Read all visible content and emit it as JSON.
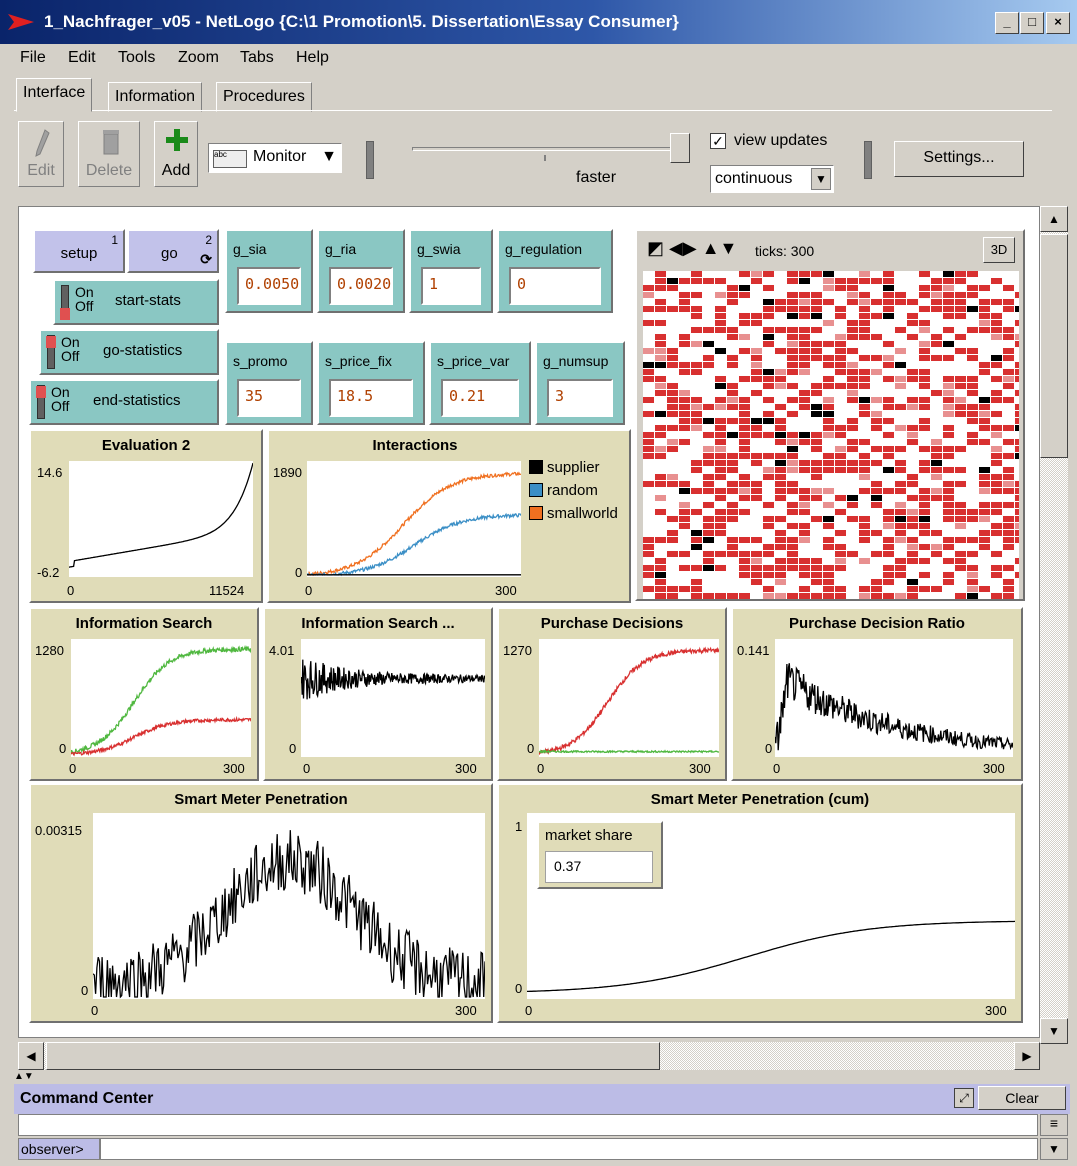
{
  "window": {
    "title": "1_Nachfrager_v05 - NetLogo {C:\\1 Promotion\\5. Dissertation\\Essay Consumer}",
    "minimize": "_",
    "maximize": "□",
    "close": "×"
  },
  "menu": [
    "File",
    "Edit",
    "Tools",
    "Zoom",
    "Tabs",
    "Help"
  ],
  "tabs": [
    "Interface",
    "Information",
    "Procedures"
  ],
  "toolbar": {
    "edit": "Edit",
    "delete": "Delete",
    "add": "Add",
    "widget_type": "Monitor",
    "speed_label": "faster",
    "view_updates": "view updates",
    "update_mode": "continuous",
    "settings": "Settings..."
  },
  "buttons": [
    {
      "label": "setup",
      "key": "1"
    },
    {
      "label": "go",
      "key": "2"
    }
  ],
  "switches": [
    {
      "label": "start-stats",
      "on": "On",
      "off": "Off"
    },
    {
      "label": "go-statistics",
      "on": "On",
      "off": "Off"
    },
    {
      "label": "end-statistics",
      "on": "On",
      "off": "Off"
    }
  ],
  "inputs": [
    {
      "label": "g_sia",
      "value": "0.0050"
    },
    {
      "label": "g_ria",
      "value": "0.0020"
    },
    {
      "label": "g_swia",
      "value": "1"
    },
    {
      "label": "g_regulation",
      "value": "0"
    },
    {
      "label": "s_promo",
      "value": "35"
    },
    {
      "label": "s_price_fix",
      "value": "18.5"
    },
    {
      "label": "s_price_var",
      "value": "0.21"
    },
    {
      "label": "g_numsup",
      "value": "3"
    }
  ],
  "view": {
    "ticks_label": "ticks: 300",
    "three_d": "3D"
  },
  "plots": {
    "eval": {
      "title": "Evaluation 2",
      "ymax": "14.6",
      "ymin": "-6.2",
      "xmin": "0",
      "xmax": "11524"
    },
    "inter": {
      "title": "Interactions",
      "ymax": "1890",
      "ymin": "0",
      "xmin": "0",
      "xmax": "300",
      "legend": [
        "supplier",
        "random",
        "smallworld"
      ]
    },
    "info": {
      "title": "Information Search",
      "ymax": "1280",
      "ymin": "0",
      "xmin": "0",
      "xmax": "300"
    },
    "info2": {
      "title": "Information Search ...",
      "ymax": "4.01",
      "ymin": "0",
      "xmin": "0",
      "xmax": "300"
    },
    "purch": {
      "title": "Purchase Decisions",
      "ymax": "1270",
      "ymin": "0",
      "xmin": "0",
      "xmax": "300"
    },
    "ratio": {
      "title": "Purchase Decision Ratio",
      "ymax": "0.141",
      "ymin": "0",
      "xmin": "0",
      "xmax": "300"
    },
    "smp": {
      "title": "Smart Meter Penetration",
      "ymax": "0.00315",
      "ymin": "0",
      "xmin": "0",
      "xmax": "300"
    },
    "smpc": {
      "title": "Smart Meter Penetration (cum)",
      "ymax": "1",
      "ymin": "0",
      "xmin": "0",
      "xmax": "300"
    }
  },
  "monitor": {
    "label": "market share",
    "value": "0.37"
  },
  "colors": {
    "supplier": "#000000",
    "random": "#3b8fc6",
    "smallworld": "#f07020",
    "red": "#d83030",
    "green": "#50b840"
  },
  "command_center": {
    "title": "Command Center",
    "clear": "Clear",
    "prompt": "observer>"
  }
}
